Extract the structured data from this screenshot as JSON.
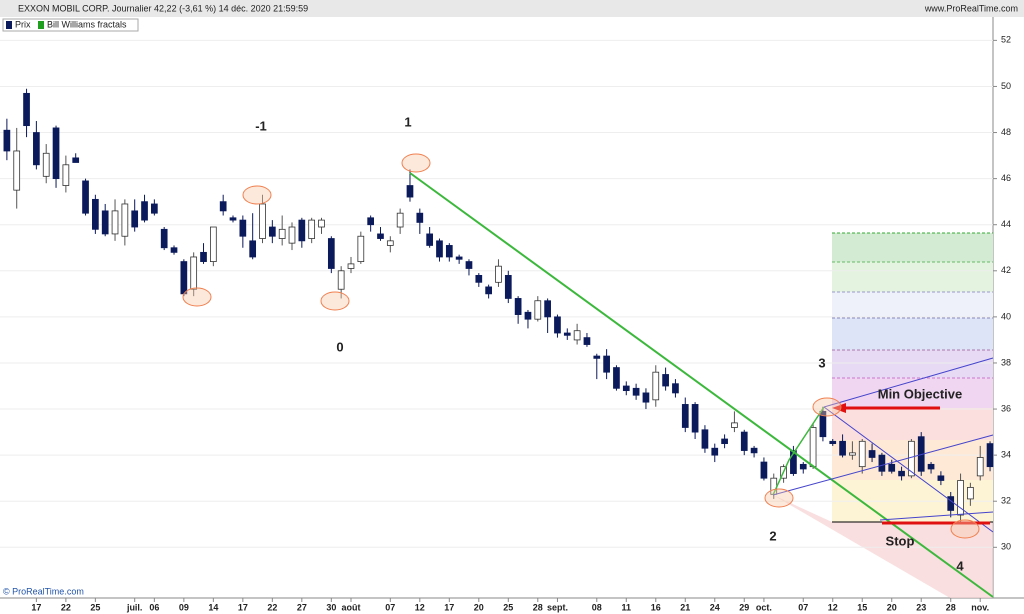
{
  "header": {
    "title": "EXXON MOBIL CORP. Journalier 42,22 (-3,61 %) 14 déc. 2020 21:59:59",
    "site": "www.ProRealTime.com",
    "footer": "© ProRealTime.com"
  },
  "chart_data": {
    "type": "candlestick",
    "series": [
      {
        "name": "Prix",
        "color": "#0b1a5a",
        "ohlc": [
          [
            48.1,
            48.6,
            46.8,
            47.2
          ],
          [
            45.5,
            48.2,
            44.7,
            47.2
          ],
          [
            49.7,
            49.9,
            47.8,
            48.3
          ],
          [
            48.0,
            48.5,
            46.4,
            46.6
          ],
          [
            46.1,
            47.5,
            45.8,
            47.1
          ],
          [
            48.2,
            48.3,
            45.6,
            46.0
          ],
          [
            45.7,
            47.0,
            45.4,
            46.6
          ],
          [
            46.9,
            47.1,
            46.7,
            46.7
          ],
          [
            45.9,
            46.0,
            44.4,
            44.5
          ],
          [
            45.1,
            45.3,
            43.6,
            43.8
          ],
          [
            44.6,
            44.9,
            43.5,
            43.6
          ],
          [
            43.6,
            45.1,
            43.3,
            44.6
          ],
          [
            43.5,
            45.1,
            43.1,
            44.9
          ],
          [
            44.6,
            45.1,
            43.7,
            43.9
          ],
          [
            45.0,
            45.3,
            44.1,
            44.2
          ],
          [
            44.9,
            45.1,
            44.4,
            44.5
          ],
          [
            43.8,
            43.9,
            42.9,
            43.0
          ],
          [
            43.0,
            43.1,
            42.7,
            42.8
          ],
          [
            42.4,
            42.5,
            40.9,
            41.0
          ],
          [
            41.2,
            42.8,
            40.9,
            42.6
          ],
          [
            42.8,
            43.2,
            42.3,
            42.4
          ],
          [
            42.4,
            43.9,
            42.2,
            43.9
          ],
          [
            45.0,
            45.3,
            44.4,
            44.6
          ],
          [
            44.3,
            44.4,
            44.1,
            44.2
          ],
          [
            44.2,
            44.4,
            43.0,
            43.5
          ],
          [
            43.3,
            44.5,
            42.5,
            42.6
          ],
          [
            43.4,
            45.3,
            43.2,
            44.9
          ],
          [
            43.9,
            44.2,
            43.2,
            43.5
          ],
          [
            43.4,
            44.4,
            43.1,
            43.8
          ],
          [
            43.2,
            44.1,
            42.9,
            43.9
          ],
          [
            44.2,
            44.3,
            43.0,
            43.3
          ],
          [
            43.4,
            44.3,
            43.2,
            44.2
          ],
          [
            43.9,
            44.3,
            43.6,
            44.2
          ],
          [
            43.4,
            43.5,
            41.9,
            42.1
          ],
          [
            41.2,
            42.2,
            40.8,
            42.0
          ],
          [
            42.1,
            42.6,
            41.9,
            42.3
          ],
          [
            42.4,
            43.7,
            42.3,
            43.5
          ],
          [
            44.3,
            44.4,
            43.7,
            44.0
          ],
          [
            43.6,
            43.9,
            43.3,
            43.4
          ],
          [
            43.1,
            43.5,
            42.8,
            43.3
          ],
          [
            43.9,
            44.7,
            43.6,
            44.5
          ],
          [
            45.7,
            46.4,
            45.0,
            45.2
          ],
          [
            44.5,
            44.7,
            43.6,
            44.1
          ],
          [
            43.6,
            43.9,
            43.0,
            43.1
          ],
          [
            43.3,
            43.4,
            42.4,
            42.6
          ],
          [
            43.1,
            43.2,
            42.4,
            42.6
          ],
          [
            42.6,
            42.7,
            42.3,
            42.5
          ],
          [
            42.4,
            42.5,
            41.8,
            42.1
          ],
          [
            41.8,
            41.9,
            41.3,
            41.5
          ],
          [
            41.3,
            41.4,
            40.8,
            41.0
          ],
          [
            41.5,
            42.5,
            41.3,
            42.2
          ],
          [
            41.8,
            42.0,
            40.6,
            40.8
          ],
          [
            40.8,
            40.9,
            39.7,
            40.1
          ],
          [
            40.2,
            40.3,
            39.5,
            39.9
          ],
          [
            39.9,
            40.9,
            39.8,
            40.7
          ],
          [
            40.7,
            40.8,
            39.3,
            40.0
          ],
          [
            40.0,
            40.1,
            39.1,
            39.3
          ],
          [
            39.3,
            39.5,
            39.0,
            39.2
          ],
          [
            39.0,
            39.7,
            38.8,
            39.4
          ],
          [
            39.1,
            39.3,
            38.7,
            38.8
          ],
          [
            38.3,
            38.4,
            37.3,
            38.2
          ],
          [
            38.3,
            38.6,
            37.3,
            37.6
          ],
          [
            37.8,
            37.9,
            36.8,
            36.9
          ],
          [
            37.0,
            37.2,
            36.6,
            36.8
          ],
          [
            36.9,
            37.1,
            36.4,
            36.6
          ],
          [
            36.7,
            36.9,
            36.0,
            36.3
          ],
          [
            36.4,
            37.9,
            36.1,
            37.6
          ],
          [
            37.5,
            37.8,
            36.8,
            37.0
          ],
          [
            37.1,
            37.3,
            36.5,
            36.7
          ],
          [
            36.2,
            36.5,
            35.0,
            35.2
          ],
          [
            36.2,
            36.3,
            34.7,
            35.0
          ],
          [
            35.1,
            35.3,
            34.1,
            34.3
          ],
          [
            34.3,
            34.5,
            33.7,
            34.0
          ],
          [
            34.7,
            34.9,
            34.3,
            34.5
          ],
          [
            35.2,
            35.9,
            35.0,
            35.4
          ],
          [
            35.0,
            35.1,
            34.0,
            34.2
          ],
          [
            34.3,
            34.4,
            33.9,
            34.1
          ],
          [
            33.7,
            33.9,
            32.9,
            33.0
          ],
          [
            32.3,
            33.2,
            32.1,
            33.0
          ],
          [
            33.0,
            33.6,
            32.8,
            33.5
          ],
          [
            34.2,
            34.4,
            33.1,
            33.2
          ],
          [
            33.6,
            33.7,
            33.2,
            33.4
          ],
          [
            33.5,
            35.4,
            33.4,
            35.2
          ],
          [
            35.9,
            36.1,
            34.6,
            34.8
          ],
          [
            34.6,
            34.7,
            34.4,
            34.5
          ],
          [
            34.6,
            34.9,
            33.9,
            34.0
          ],
          [
            34.0,
            34.6,
            33.8,
            34.1
          ],
          [
            33.5,
            34.7,
            33.2,
            34.6
          ],
          [
            34.2,
            34.5,
            33.7,
            33.9
          ],
          [
            34.0,
            34.1,
            33.1,
            33.3
          ],
          [
            33.6,
            33.8,
            33.2,
            33.3
          ],
          [
            33.3,
            33.5,
            32.9,
            33.1
          ],
          [
            33.1,
            34.7,
            33.0,
            34.6
          ],
          [
            34.8,
            35.0,
            33.1,
            33.3
          ],
          [
            33.6,
            33.7,
            33.2,
            33.4
          ],
          [
            33.1,
            33.3,
            32.7,
            32.9
          ],
          [
            32.2,
            32.4,
            31.3,
            31.6
          ],
          [
            31.4,
            33.2,
            31.0,
            32.9
          ],
          [
            32.1,
            32.8,
            31.8,
            32.6
          ],
          [
            33.1,
            34.4,
            32.9,
            33.9
          ],
          [
            34.5,
            34.6,
            33.3,
            33.5
          ]
        ]
      },
      {
        "name": "Bill Williams fractals",
        "color": "#1f9e1f"
      }
    ],
    "xlim": [
      -0.7,
      100.3
    ],
    "xticks": [
      {
        "value": 3,
        "label": "17"
      },
      {
        "value": 6,
        "label": "22"
      },
      {
        "value": 9,
        "label": "25"
      },
      {
        "value": 13,
        "label": "juil."
      },
      {
        "value": 15,
        "label": "06"
      },
      {
        "value": 18,
        "label": "09"
      },
      {
        "value": 21,
        "label": "14"
      },
      {
        "value": 24,
        "label": "17"
      },
      {
        "value": 27,
        "label": "22"
      },
      {
        "value": 30,
        "label": "27"
      },
      {
        "value": 33,
        "label": "30"
      },
      {
        "value": 35,
        "label": "août"
      },
      {
        "value": 39,
        "label": "07"
      },
      {
        "value": 42,
        "label": "12"
      },
      {
        "value": 45,
        "label": "17"
      },
      {
        "value": 48,
        "label": "20"
      },
      {
        "value": 51,
        "label": "25"
      },
      {
        "value": 54,
        "label": "28"
      },
      {
        "value": 56,
        "label": "sept."
      },
      {
        "value": 60,
        "label": "08"
      },
      {
        "value": 63,
        "label": "11"
      },
      {
        "value": 66,
        "label": "16"
      },
      {
        "value": 69,
        "label": "21"
      },
      {
        "value": 72,
        "label": "24"
      },
      {
        "value": 75,
        "label": "29"
      },
      {
        "value": 77,
        "label": "oct."
      },
      {
        "value": 81,
        "label": "07"
      },
      {
        "value": 84,
        "label": "12"
      },
      {
        "value": 87,
        "label": "15"
      },
      {
        "value": 90,
        "label": "20"
      },
      {
        "value": 93,
        "label": "23"
      },
      {
        "value": 96,
        "label": "28"
      },
      {
        "value": 99,
        "label": "nov."
      }
    ],
    "ylim": [
      27.8,
      52.45
    ],
    "yticks": [
      30,
      32,
      34,
      36,
      38,
      40,
      42,
      44,
      46,
      48,
      50,
      52
    ],
    "annotations": [
      "-1",
      "1",
      "0",
      "2",
      "3",
      "4",
      "Min Objective",
      "Stop"
    ]
  }
}
